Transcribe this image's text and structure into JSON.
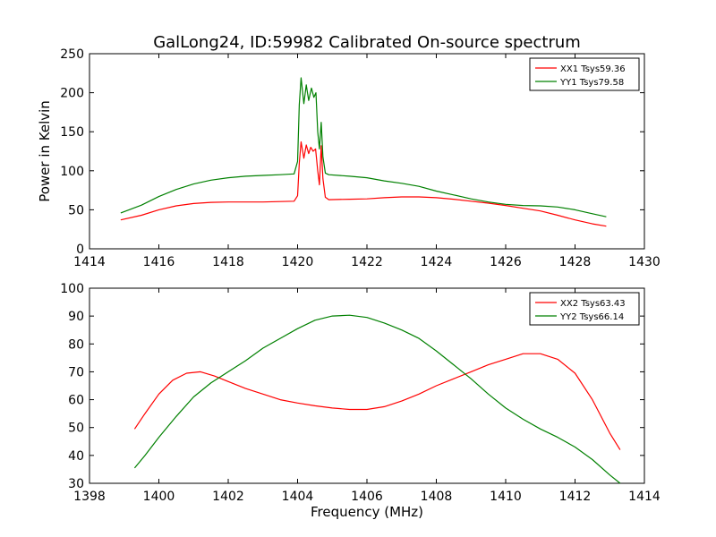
{
  "chart_data": [
    {
      "type": "line",
      "title": "GalLong24, ID:59982 Calibrated On-source spectrum",
      "xlabel": "",
      "ylabel": "Power in Kelvin",
      "xlim": [
        1414,
        1430
      ],
      "ylim": [
        0,
        250
      ],
      "xticks": [
        1414,
        1416,
        1418,
        1420,
        1422,
        1424,
        1426,
        1428,
        1430
      ],
      "yticks": [
        0,
        50,
        100,
        150,
        200,
        250
      ],
      "legend_position": "top-right",
      "series": [
        {
          "name": "XX1 Tsys59.36",
          "color": "#ff0000",
          "points": [
            [
              1414.9,
              37
            ],
            [
              1415.5,
              43
            ],
            [
              1416.0,
              50
            ],
            [
              1416.5,
              55
            ],
            [
              1417.0,
              58
            ],
            [
              1417.5,
              59.5
            ],
            [
              1418.0,
              60
            ],
            [
              1418.5,
              60
            ],
            [
              1419.0,
              60
            ],
            [
              1419.5,
              60.5
            ],
            [
              1419.9,
              61
            ],
            [
              1420.0,
              68
            ],
            [
              1420.05,
              110
            ],
            [
              1420.1,
              137
            ],
            [
              1420.18,
              116
            ],
            [
              1420.25,
              133
            ],
            [
              1420.32,
              122
            ],
            [
              1420.38,
              130
            ],
            [
              1420.45,
              125
            ],
            [
              1420.52,
              128
            ],
            [
              1420.58,
              100
            ],
            [
              1420.63,
              82
            ],
            [
              1420.68,
              132
            ],
            [
              1420.73,
              90
            ],
            [
              1420.8,
              66
            ],
            [
              1420.9,
              63
            ],
            [
              1421.5,
              63.5
            ],
            [
              1422.0,
              64
            ],
            [
              1422.5,
              65.5
            ],
            [
              1423.0,
              66.5
            ],
            [
              1423.5,
              66.5
            ],
            [
              1424.0,
              65.5
            ],
            [
              1424.5,
              63.5
            ],
            [
              1425.0,
              61
            ],
            [
              1425.5,
              58.5
            ],
            [
              1426.0,
              55.5
            ],
            [
              1426.5,
              52
            ],
            [
              1427.0,
              48.5
            ],
            [
              1427.5,
              43
            ],
            [
              1428.0,
              37
            ],
            [
              1428.5,
              32
            ],
            [
              1428.9,
              29
            ]
          ]
        },
        {
          "name": "YY1 Tsys79.58",
          "color": "#008000",
          "points": [
            [
              1414.9,
              46
            ],
            [
              1415.5,
              56
            ],
            [
              1416.0,
              67
            ],
            [
              1416.5,
              76
            ],
            [
              1417.0,
              83
            ],
            [
              1417.5,
              88
            ],
            [
              1418.0,
              91
            ],
            [
              1418.5,
              93
            ],
            [
              1419.0,
              94
            ],
            [
              1419.5,
              95
            ],
            [
              1419.9,
              96
            ],
            [
              1420.0,
              112
            ],
            [
              1420.05,
              185
            ],
            [
              1420.1,
              219
            ],
            [
              1420.18,
              186
            ],
            [
              1420.25,
              210
            ],
            [
              1420.32,
              190
            ],
            [
              1420.4,
              206
            ],
            [
              1420.47,
              194
            ],
            [
              1420.53,
              200
            ],
            [
              1420.58,
              150
            ],
            [
              1420.63,
              128
            ],
            [
              1420.68,
              162
            ],
            [
              1420.73,
              118
            ],
            [
              1420.8,
              97
            ],
            [
              1420.9,
              95
            ],
            [
              1421.5,
              93
            ],
            [
              1422.0,
              91
            ],
            [
              1422.5,
              87
            ],
            [
              1423.0,
              84
            ],
            [
              1423.5,
              80
            ],
            [
              1424.0,
              74
            ],
            [
              1424.5,
              69
            ],
            [
              1425.0,
              64
            ],
            [
              1425.5,
              60
            ],
            [
              1426.0,
              57
            ],
            [
              1426.5,
              55.5
            ],
            [
              1427.0,
              55
            ],
            [
              1427.5,
              53.5
            ],
            [
              1428.0,
              50
            ],
            [
              1428.5,
              45
            ],
            [
              1428.9,
              41
            ]
          ]
        }
      ]
    },
    {
      "type": "line",
      "title": "",
      "xlabel": "Frequency (MHz)",
      "ylabel": "",
      "xlim": [
        1398,
        1414
      ],
      "ylim": [
        30,
        100
      ],
      "xticks": [
        1398,
        1400,
        1402,
        1404,
        1406,
        1408,
        1410,
        1412,
        1414
      ],
      "yticks": [
        30,
        40,
        50,
        60,
        70,
        80,
        90,
        100
      ],
      "legend_position": "top-right",
      "series": [
        {
          "name": "XX2 Tsys63.43",
          "color": "#ff0000",
          "points": [
            [
              1399.3,
              49.5
            ],
            [
              1399.6,
              55
            ],
            [
              1400.0,
              62
            ],
            [
              1400.4,
              67
            ],
            [
              1400.8,
              69.5
            ],
            [
              1401.2,
              70
            ],
            [
              1401.6,
              68.5
            ],
            [
              1402.0,
              66.5
            ],
            [
              1402.5,
              64
            ],
            [
              1403.0,
              62
            ],
            [
              1403.5,
              60
            ],
            [
              1404.0,
              58.8
            ],
            [
              1404.5,
              57.8
            ],
            [
              1405.0,
              57
            ],
            [
              1405.5,
              56.5
            ],
            [
              1406.0,
              56.5
            ],
            [
              1406.5,
              57.5
            ],
            [
              1407.0,
              59.5
            ],
            [
              1407.5,
              62
            ],
            [
              1408.0,
              65
            ],
            [
              1408.5,
              67.5
            ],
            [
              1409.0,
              70
            ],
            [
              1409.5,
              72.5
            ],
            [
              1410.0,
              74.5
            ],
            [
              1410.5,
              76.5
            ],
            [
              1411.0,
              76.5
            ],
            [
              1411.5,
              74.5
            ],
            [
              1412.0,
              69.5
            ],
            [
              1412.5,
              60
            ],
            [
              1413.0,
              48
            ],
            [
              1413.3,
              42
            ]
          ]
        },
        {
          "name": "YY2 Tsys66.14",
          "color": "#008000",
          "points": [
            [
              1399.3,
              35.5
            ],
            [
              1399.6,
              40
            ],
            [
              1400.0,
              46.5
            ],
            [
              1400.5,
              54
            ],
            [
              1401.0,
              61
            ],
            [
              1401.5,
              66
            ],
            [
              1402.0,
              70
            ],
            [
              1402.5,
              74
            ],
            [
              1403.0,
              78.5
            ],
            [
              1403.5,
              82
            ],
            [
              1404.0,
              85.5
            ],
            [
              1404.5,
              88.5
            ],
            [
              1405.0,
              90
            ],
            [
              1405.5,
              90.3
            ],
            [
              1406.0,
              89.5
            ],
            [
              1406.5,
              87.5
            ],
            [
              1407.0,
              85
            ],
            [
              1407.5,
              82
            ],
            [
              1408.0,
              77.5
            ],
            [
              1408.5,
              72.5
            ],
            [
              1409.0,
              67.5
            ],
            [
              1409.5,
              62
            ],
            [
              1410.0,
              57
            ],
            [
              1410.5,
              53
            ],
            [
              1411.0,
              49.5
            ],
            [
              1411.5,
              46.5
            ],
            [
              1412.0,
              43
            ],
            [
              1412.5,
              38.5
            ],
            [
              1413.0,
              33
            ],
            [
              1413.3,
              30
            ]
          ]
        }
      ]
    }
  ]
}
